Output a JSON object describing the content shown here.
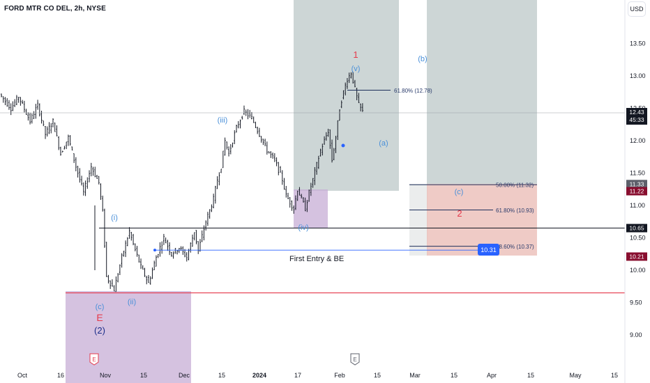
{
  "header": {
    "title": "FORD MTR CO DEL, 2h, NYSE",
    "currency": "USD"
  },
  "chart_data": {
    "type": "candlestick",
    "symbol": "FORD MTR CO DEL",
    "interval": "2h",
    "exchange": "NYSE",
    "ylim": [
      8.5,
      14.0
    ],
    "price_ticks": [
      "13.50",
      "13.00",
      "12.50",
      "12.00",
      "11.50",
      "11.00",
      "10.50",
      "10.00",
      "9.50",
      "9.00"
    ],
    "time_ticks": [
      "Oct",
      "16",
      "Nov",
      "15",
      "Dec",
      "15",
      "2024",
      "17",
      "Feb",
      "15",
      "Mar",
      "15",
      "Apr",
      "15",
      "May",
      "15"
    ],
    "price_path": [
      [
        0,
        12.72
      ],
      [
        3,
        12.5
      ],
      [
        5,
        12.68
      ],
      [
        8,
        12.3
      ],
      [
        10,
        12.55
      ],
      [
        12,
        12.1
      ],
      [
        14,
        12.3
      ],
      [
        16,
        11.8
      ],
      [
        18,
        12.05
      ],
      [
        20,
        11.6
      ],
      [
        22,
        11.2
      ],
      [
        24,
        11.6
      ],
      [
        26,
        11.35
      ],
      [
        27,
        10.9
      ],
      [
        28,
        9.9
      ],
      [
        30,
        9.7
      ],
      [
        32,
        10.2
      ],
      [
        34,
        10.6
      ],
      [
        35,
        10.4
      ],
      [
        37,
        10.05
      ],
      [
        39,
        9.8
      ],
      [
        41,
        10.2
      ],
      [
        43,
        10.5
      ],
      [
        45,
        10.25
      ],
      [
        47,
        10.35
      ],
      [
        49,
        10.2
      ],
      [
        51,
        10.6
      ],
      [
        52,
        10.3
      ],
      [
        54,
        10.75
      ],
      [
        56,
        11.1
      ],
      [
        57,
        11.4
      ],
      [
        58,
        11.6
      ],
      [
        59,
        12.0
      ],
      [
        60,
        11.8
      ],
      [
        62,
        12.2
      ],
      [
        64,
        12.45
      ],
      [
        66,
        12.35
      ],
      [
        68,
        12.1
      ],
      [
        70,
        11.85
      ],
      [
        72,
        11.7
      ],
      [
        74,
        11.4
      ],
      [
        75,
        11.15
      ],
      [
        77,
        10.95
      ],
      [
        78,
        11.25
      ],
      [
        80,
        10.95
      ],
      [
        81,
        11.2
      ],
      [
        82,
        11.4
      ],
      [
        84,
        11.85
      ],
      [
        86,
        12.15
      ],
      [
        87,
        11.7
      ],
      [
        88,
        12.05
      ],
      [
        89,
        12.5
      ],
      [
        90,
        12.75
      ],
      [
        91,
        12.95
      ],
      [
        92,
        13.05
      ],
      [
        93,
        12.8
      ],
      [
        94,
        12.55
      ],
      [
        95,
        12.45
      ]
    ],
    "ohlc_current": {
      "price": "12.43",
      "countdown": "45:33"
    },
    "horizontal_levels": [
      {
        "price": 10.65,
        "label": "10.65",
        "color": "#131722"
      },
      {
        "price": 9.65,
        "label": "",
        "color": "#e5394b"
      },
      {
        "price": 10.31,
        "label": "10.31",
        "color": "#2962ff"
      }
    ],
    "axis_badges": [
      {
        "price": 12.43,
        "label": "12.43",
        "sub": "45:33",
        "color": "#131722"
      },
      {
        "price": 11.33,
        "label": "11.33",
        "color": "#5d606b"
      },
      {
        "price": 11.22,
        "label": "11.22",
        "color": "#880e2f"
      },
      {
        "price": 10.65,
        "label": "10.65",
        "color": "#131722"
      },
      {
        "price": 10.21,
        "label": "10.21",
        "color": "#880e2f"
      }
    ],
    "fib_levels": [
      {
        "label": "61.80% (12.78)",
        "price": 12.78
      },
      {
        "label": "50.00% (11.32)",
        "price": 11.32
      },
      {
        "label": "61.80% (10.93)",
        "price": 10.93
      },
      {
        "label": "78.60% (10.37)",
        "price": 10.37
      }
    ],
    "annotations": {
      "first_entry": "First Entry & BE",
      "entry_badge": "10.31"
    },
    "waves": [
      {
        "label": "1",
        "color": "#e5394b"
      },
      {
        "label": "(v)",
        "color": "#4a90d9"
      },
      {
        "label": "(b)",
        "color": "#4a90d9"
      },
      {
        "label": "(iii)",
        "color": "#4a90d9"
      },
      {
        "label": "(a)",
        "color": "#4a90d9"
      },
      {
        "label": "(c)",
        "color": "#4a90d9"
      },
      {
        "label": "2",
        "color": "#e5394b"
      },
      {
        "label": "(i)",
        "color": "#4a90d9"
      },
      {
        "label": "(iv)",
        "color": "#4a90d9"
      },
      {
        "label": "(c)",
        "color": "#4a90d9"
      },
      {
        "label": "(ii)",
        "color": "#4a90d9"
      },
      {
        "label": "E",
        "color": "#e5394b"
      },
      {
        "label": "(2)",
        "color": "#1c2e8a"
      }
    ],
    "event_markers": [
      {
        "label": "E",
        "color": "#e5394b"
      },
      {
        "label": "E",
        "color": "#5d606b"
      }
    ],
    "colors": {
      "candle": "#131722",
      "support_line": "#e5394b",
      "entry_line": "#2962ff",
      "teal_zone": "#b2c0c0",
      "purple_zone": "#c7aed6",
      "red_zone": "#e8b5ae",
      "grey_zone": "#e3e6e6",
      "current_price_line": "#9aa0a6"
    }
  }
}
